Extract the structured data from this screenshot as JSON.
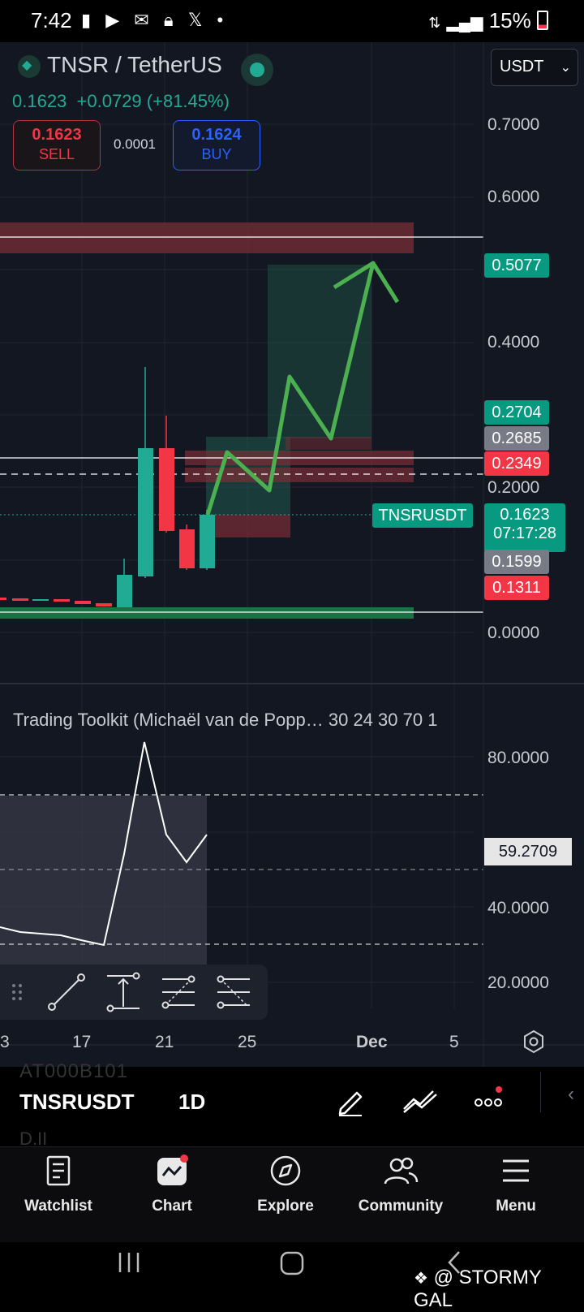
{
  "status_bar": {
    "time": "7:42",
    "battery": "15%",
    "left_icons": [
      "alert-icon",
      "play-icon",
      "mail-icon",
      "lock-icon",
      "x-icon",
      "dot-icon"
    ],
    "right_icons": [
      "data-arrows-icon",
      "signal-icon",
      "battery-icon"
    ]
  },
  "symbol": {
    "title": "TNSR / TetherUS",
    "price": "0.1623",
    "change": "+0.0729 (+81.45%)",
    "sell_price": "0.1623",
    "sell_label": "SELL",
    "spread": "0.0001",
    "buy_price": "0.1624",
    "buy_label": "BUY",
    "currency": "USDT"
  },
  "price_axis": {
    "labels": [
      "0.7000",
      "0.6000",
      "0.4000",
      "0.2000",
      "0.0000"
    ]
  },
  "price_tags": {
    "tag1": "0.5077",
    "tag2": "0.2704",
    "tag3": "0.2685",
    "tag4": "0.2349",
    "symbol_tag": "TNSRUSDT",
    "last_price": "0.1623",
    "countdown": "07:17:28",
    "tag5": "0.1599",
    "tag6": "0.1311"
  },
  "indicator": {
    "title": "Trading Toolkit (Michaël van de Popp…  30  24  30  70  1",
    "axis_labels": [
      "80.0000",
      "40.0000",
      "20.0000"
    ],
    "current_value": "59.2709"
  },
  "date_axis": {
    "labels": [
      "3",
      "17",
      "21",
      "25",
      "Dec",
      "5"
    ]
  },
  "ticker_bar": {
    "symbol": "TNSRUSDT",
    "interval": "1D",
    "ghost_top": "AT000B101",
    "ghost_bottom": "D.II"
  },
  "tabs": {
    "watchlist": "Watchlist",
    "chart": "Chart",
    "explore": "Explore",
    "community": "Community",
    "menu": "Menu"
  },
  "watermark": "@ STORMY GAL",
  "colors": {
    "up": "#22ab94",
    "down": "#f23645",
    "background": "#131722",
    "arrow": "#4caf50"
  }
}
